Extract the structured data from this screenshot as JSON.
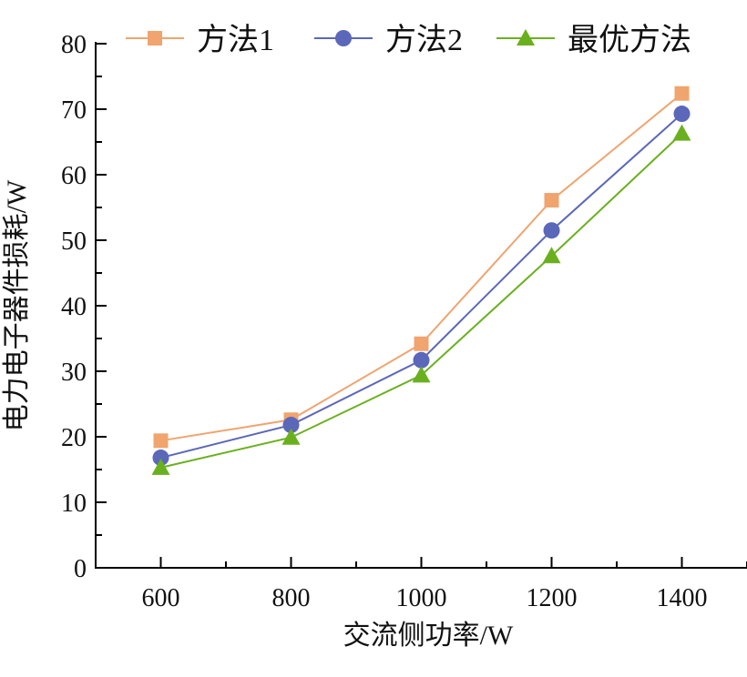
{
  "chart_data": {
    "type": "line",
    "title": "",
    "xlabel": "交流侧功率/W",
    "ylabel": "电力电子器件损耗/W",
    "x": [
      600,
      800,
      1000,
      1200,
      1400
    ],
    "xlim": [
      500,
      1500
    ],
    "ylim": [
      0,
      80
    ],
    "x_ticks": [
      "600",
      "800",
      "1000",
      "1200",
      "1400"
    ],
    "y_ticks": [
      "0",
      "10",
      "20",
      "30",
      "40",
      "50",
      "60",
      "70",
      "80"
    ],
    "grid": false,
    "legend_position": "top",
    "series": [
      {
        "name": "方法1",
        "marker": "square",
        "color": "#F0A46E",
        "values": [
          19.4,
          22.6,
          34.2,
          56.1,
          72.4
        ]
      },
      {
        "name": "方法2",
        "marker": "circle",
        "color": "#5B67B8",
        "values": [
          16.8,
          21.8,
          31.7,
          51.5,
          69.3
        ]
      },
      {
        "name": "最优方法",
        "marker": "triangle",
        "color": "#6AB01E",
        "values": [
          15.3,
          19.9,
          29.4,
          47.6,
          66.3
        ]
      }
    ]
  }
}
